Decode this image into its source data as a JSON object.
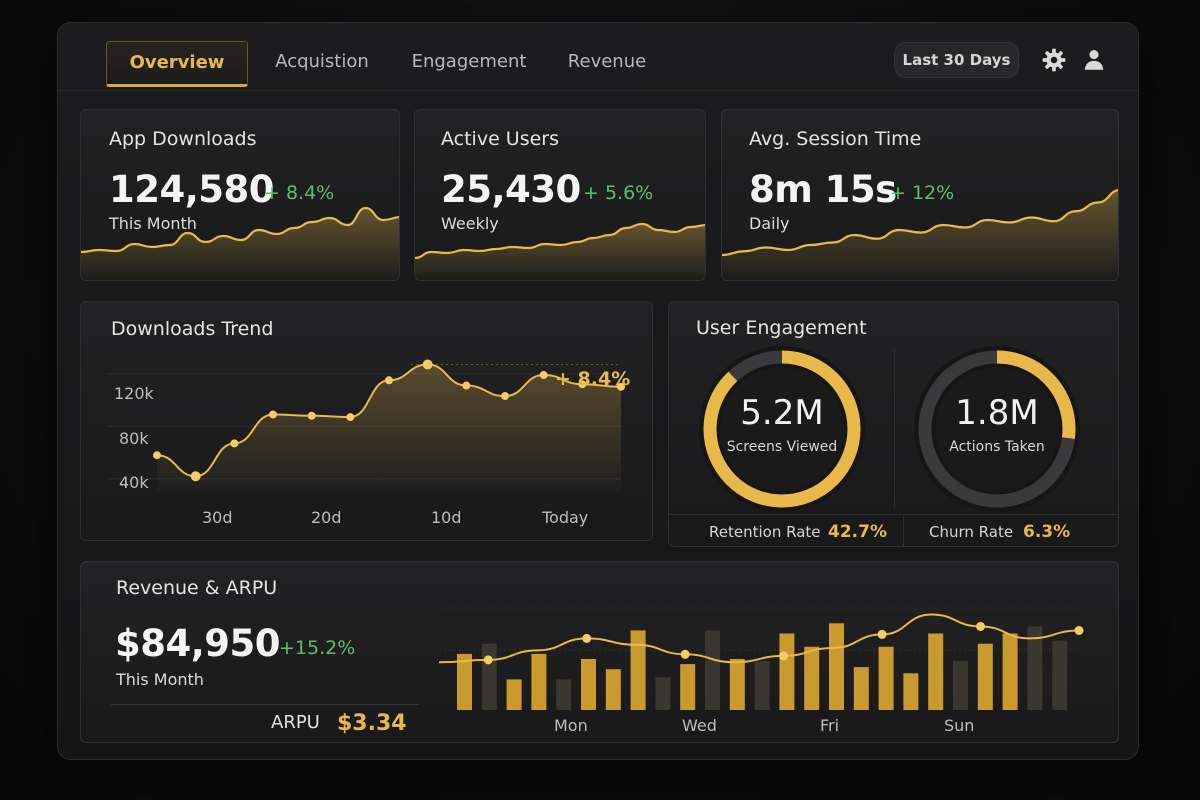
{
  "tabs": [
    {
      "label": "Overview",
      "active": true
    },
    {
      "label": "Acquistion",
      "active": false
    },
    {
      "label": "Engagement",
      "active": false
    },
    {
      "label": "Revenue",
      "active": false
    }
  ],
  "range_label": "Last 30 Days",
  "icons": {
    "settings": "gear-icon",
    "user": "user-icon"
  },
  "colors": {
    "accent": "#e9b84a",
    "positive": "#58c070",
    "background": "#121213"
  },
  "kpis": [
    {
      "title": "App Downloads",
      "value": "124,580",
      "delta": "+ 8.4%",
      "period": "This Month"
    },
    {
      "title": "Active Users",
      "value": "25,430",
      "delta": "+ 5.6%",
      "period": "Weekly"
    },
    {
      "title": "Avg. Session Time",
      "value": "8m 15s",
      "delta": "+ 12%",
      "period": "Daily"
    }
  ],
  "downloads_trend": {
    "title": "Downloads Trend",
    "delta": "+ 8.4%",
    "y_ticks": [
      "120k",
      "80k",
      "40k"
    ],
    "x_ticks": [
      "30d",
      "20d",
      "10d",
      "Today"
    ]
  },
  "engagement": {
    "title": "User Engagement",
    "rings": [
      {
        "value": "5.2M",
        "label": "Screens Viewed",
        "fill": 0.88
      },
      {
        "value": "1.8M",
        "label": "Actions Taken",
        "fill": 0.27
      }
    ],
    "stats": [
      {
        "label": "Retention Rate",
        "value": "42.7%"
      },
      {
        "label": "Churn Rate",
        "value": "6.3%"
      }
    ]
  },
  "revenue": {
    "title": "Revenue & ARPU",
    "value": "$84,950",
    "delta": "+15.2%",
    "period": "This Month",
    "arpu_label": "ARPU",
    "arpu_value": "$3.34",
    "x_ticks": [
      "Mon",
      "Wed",
      "Fri",
      "Sun"
    ]
  },
  "chart_data": [
    {
      "type": "area",
      "series": [
        {
          "values": [
            28,
            30,
            29,
            36,
            33,
            35,
            47,
            38,
            44,
            40,
            50,
            46,
            52,
            58,
            62,
            55,
            72,
            60,
            63
          ]
        }
      ],
      "legend": "none",
      "grid": false
    },
    {
      "type": "area",
      "series": [
        {
          "values": [
            22,
            28,
            27,
            30,
            29,
            31,
            33,
            32,
            36,
            35,
            38,
            42,
            45,
            52,
            56,
            50,
            48,
            53,
            55
          ]
        }
      ],
      "legend": "none",
      "grid": false
    },
    {
      "type": "area",
      "series": [
        {
          "values": [
            20,
            23,
            26,
            24,
            28,
            30,
            36,
            33,
            40,
            38,
            44,
            42,
            48,
            46,
            50,
            47,
            55,
            62,
            72
          ]
        }
      ],
      "legend": "none",
      "grid": false
    },
    {
      "type": "line",
      "title": "Downloads Trend",
      "x": [
        0,
        1,
        2,
        3,
        4,
        5,
        6,
        7,
        8,
        9,
        10,
        11,
        12
      ],
      "xticks": [
        "30d",
        "20d",
        "10d",
        "Today"
      ],
      "series": [
        {
          "values": [
            58,
            42,
            67,
            89,
            88,
            87,
            115,
            127,
            111,
            103,
            119,
            112,
            110
          ]
        }
      ],
      "ylim": [
        30,
        135
      ],
      "grid": true,
      "annotation": "+ 8.4%"
    },
    {
      "type": "bar",
      "title": "Revenue & ARPU",
      "xticks": [
        "Mon",
        "Wed",
        "Fri",
        "Sun"
      ],
      "bars": [
        0.55,
        0.65,
        0.3,
        0.55,
        0.3,
        0.5,
        0.4,
        0.78,
        0.32,
        0.45,
        0.78,
        0.5,
        0.48,
        0.75,
        0.62,
        0.85,
        0.42,
        0.62,
        0.36,
        0.75,
        0.48,
        0.65,
        0.75,
        0.82,
        0.68
      ],
      "bar_highlight": [
        true,
        false,
        true,
        true,
        false,
        true,
        true,
        true,
        false,
        true,
        false,
        true,
        false,
        true,
        true,
        true,
        true,
        true,
        true,
        true,
        false,
        true,
        true,
        false,
        false
      ],
      "line": [
        0.6,
        0.63,
        0.75,
        0.9,
        0.82,
        0.7,
        0.6,
        0.68,
        0.78,
        0.95,
        1.2,
        1.05,
        0.9,
        1.0
      ],
      "legend": "none",
      "grid": true
    }
  ]
}
